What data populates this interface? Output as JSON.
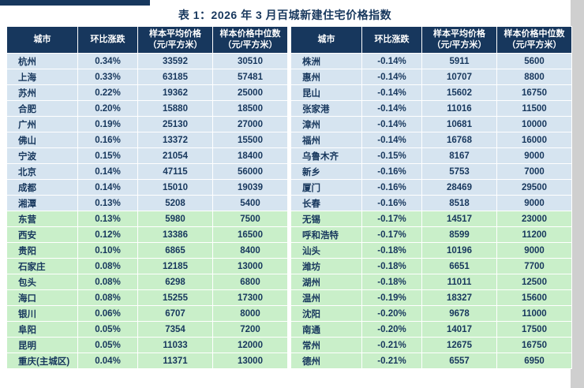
{
  "title": "表 1：2026 年 3 月百城新建住宅价格指数",
  "table": {
    "headers": [
      "城市",
      "环比涨跌",
      "样本平均价格\n（元/平方米）",
      "样本价格中位数\n（元/平方米）"
    ],
    "green_start_index": 10,
    "left_rows": [
      {
        "city": "杭州",
        "change": "0.34%",
        "avg": "33592",
        "median": "30510"
      },
      {
        "city": "上海",
        "change": "0.33%",
        "avg": "63185",
        "median": "57481"
      },
      {
        "city": "苏州",
        "change": "0.22%",
        "avg": "19362",
        "median": "25000"
      },
      {
        "city": "合肥",
        "change": "0.20%",
        "avg": "15880",
        "median": "18500"
      },
      {
        "city": "广州",
        "change": "0.19%",
        "avg": "25130",
        "median": "27000"
      },
      {
        "city": "佛山",
        "change": "0.16%",
        "avg": "13372",
        "median": "15500"
      },
      {
        "city": "宁波",
        "change": "0.15%",
        "avg": "21054",
        "median": "18400"
      },
      {
        "city": "北京",
        "change": "0.14%",
        "avg": "47115",
        "median": "56000"
      },
      {
        "city": "成都",
        "change": "0.14%",
        "avg": "15010",
        "median": "19039"
      },
      {
        "city": "湘潭",
        "change": "0.13%",
        "avg": "5208",
        "median": "5400"
      },
      {
        "city": "东营",
        "change": "0.13%",
        "avg": "5980",
        "median": "7500"
      },
      {
        "city": "西安",
        "change": "0.12%",
        "avg": "13386",
        "median": "16500"
      },
      {
        "city": "贵阳",
        "change": "0.10%",
        "avg": "6865",
        "median": "8400"
      },
      {
        "city": "石家庄",
        "change": "0.08%",
        "avg": "12185",
        "median": "13000"
      },
      {
        "city": "包头",
        "change": "0.08%",
        "avg": "6298",
        "median": "6800"
      },
      {
        "city": "海口",
        "change": "0.08%",
        "avg": "15255",
        "median": "17300"
      },
      {
        "city": "银川",
        "change": "0.06%",
        "avg": "6707",
        "median": "8000"
      },
      {
        "city": "阜阳",
        "change": "0.05%",
        "avg": "7354",
        "median": "7200"
      },
      {
        "city": "昆明",
        "change": "0.05%",
        "avg": "11033",
        "median": "12000"
      },
      {
        "city": "重庆(主城区)",
        "change": "0.04%",
        "avg": "11371",
        "median": "13000"
      }
    ],
    "right_rows": [
      {
        "city": "株洲",
        "change": "-0.14%",
        "avg": "5911",
        "median": "5600"
      },
      {
        "city": "惠州",
        "change": "-0.14%",
        "avg": "10707",
        "median": "8800"
      },
      {
        "city": "昆山",
        "change": "-0.14%",
        "avg": "15602",
        "median": "16750"
      },
      {
        "city": "张家港",
        "change": "-0.14%",
        "avg": "11016",
        "median": "11500"
      },
      {
        "city": "漳州",
        "change": "-0.14%",
        "avg": "10681",
        "median": "10000"
      },
      {
        "city": "福州",
        "change": "-0.14%",
        "avg": "16768",
        "median": "16000"
      },
      {
        "city": "乌鲁木齐",
        "change": "-0.15%",
        "avg": "8167",
        "median": "9000"
      },
      {
        "city": "新乡",
        "change": "-0.16%",
        "avg": "5753",
        "median": "7000"
      },
      {
        "city": "厦门",
        "change": "-0.16%",
        "avg": "28469",
        "median": "29500"
      },
      {
        "city": "长春",
        "change": "-0.16%",
        "avg": "8518",
        "median": "9000"
      },
      {
        "city": "无锡",
        "change": "-0.17%",
        "avg": "14517",
        "median": "23000"
      },
      {
        "city": "呼和浩特",
        "change": "-0.17%",
        "avg": "8599",
        "median": "11200"
      },
      {
        "city": "汕头",
        "change": "-0.18%",
        "avg": "10196",
        "median": "9000"
      },
      {
        "city": "潍坊",
        "change": "-0.18%",
        "avg": "6651",
        "median": "7700"
      },
      {
        "city": "湖州",
        "change": "-0.18%",
        "avg": "11011",
        "median": "12500"
      },
      {
        "city": "温州",
        "change": "-0.19%",
        "avg": "18327",
        "median": "15600"
      },
      {
        "city": "沈阳",
        "change": "-0.20%",
        "avg": "9678",
        "median": "11000"
      },
      {
        "city": "南通",
        "change": "-0.20%",
        "avg": "14017",
        "median": "17500"
      },
      {
        "city": "常州",
        "change": "-0.21%",
        "avg": "12675",
        "median": "16750"
      },
      {
        "city": "德州",
        "change": "-0.21%",
        "avg": "6557",
        "median": "6950"
      }
    ]
  },
  "colors": {
    "header_bg": "#17375D",
    "title_text": "#17375D",
    "cell_text": "#17375D",
    "row_blue": "#D6E4F0",
    "row_green": "#C9EFC9",
    "edge_gray": "#CFCFCF"
  }
}
